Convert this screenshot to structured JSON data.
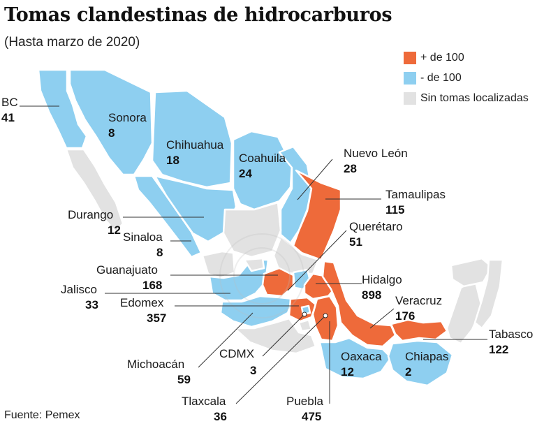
{
  "title": "Tomas clandestinas de hidrocarburos",
  "subtitle": "(Hasta marzo de 2020)",
  "source": "Fuente: Pemex",
  "colors": {
    "high": "#ee6a3a",
    "low": "#8ecff0",
    "none": "#e2e2e2",
    "outline": "#ffffff"
  },
  "legend": [
    {
      "label": "+ de 100",
      "color": "#ee6a3a"
    },
    {
      "label": "- de 100",
      "color": "#8ecff0"
    },
    {
      "label": "Sin tomas localizadas",
      "color": "#e2e2e2"
    }
  ],
  "states": {
    "bc": {
      "name": "BC",
      "value": "41",
      "category": "low"
    },
    "sonora": {
      "name": "Sonora",
      "value": "8",
      "category": "low"
    },
    "chihuahua": {
      "name": "Chihuahua",
      "value": "18",
      "category": "low"
    },
    "coahuila": {
      "name": "Coahuila",
      "value": "24",
      "category": "low"
    },
    "nuevo_leon": {
      "name": "Nuevo León",
      "value": "28",
      "category": "low"
    },
    "tamaulipas": {
      "name": "Tamaulipas",
      "value": "115",
      "category": "high"
    },
    "queretaro": {
      "name": "Querétaro",
      "value": "51",
      "category": "low"
    },
    "durango": {
      "name": "Durango",
      "value": "12",
      "category": "low"
    },
    "sinaloa": {
      "name": "Sinaloa",
      "value": "8",
      "category": "low"
    },
    "guanajuato": {
      "name": "Guanajuato",
      "value": "168",
      "category": "high"
    },
    "hidalgo": {
      "name": "Hidalgo",
      "value": "898",
      "category": "high"
    },
    "jalisco": {
      "name": "Jalisco",
      "value": "33",
      "category": "low"
    },
    "edomex": {
      "name": "Edomex",
      "value": "357",
      "category": "high"
    },
    "veracruz": {
      "name": "Veracruz",
      "value": "176",
      "category": "high"
    },
    "tabasco": {
      "name": "Tabasco",
      "value": "122",
      "category": "high"
    },
    "oaxaca": {
      "name": "Oaxaca",
      "value": "12",
      "category": "low"
    },
    "chiapas": {
      "name": "Chiapas",
      "value": "2",
      "category": "low"
    },
    "michoacan": {
      "name": "Michoacán",
      "value": "59",
      "category": "low"
    },
    "cdmx": {
      "name": "CDMX",
      "value": "3",
      "category": "low"
    },
    "tlaxcala": {
      "name": "Tlaxcala",
      "value": "36",
      "category": "low"
    },
    "puebla": {
      "name": "Puebla",
      "value": "475",
      "category": "high"
    }
  }
}
